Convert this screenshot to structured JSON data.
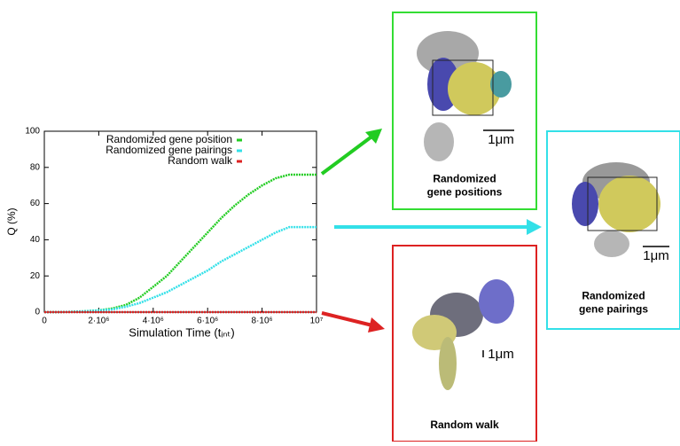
{
  "chart_data": {
    "type": "line",
    "x_label": "Simulation Time (tᵢₙₜ)",
    "y_label": "Q (%)",
    "x": [
      0,
      500000,
      1000000,
      1500000,
      2000000,
      2500000,
      3000000,
      3500000,
      4000000,
      4500000,
      5000000,
      5500000,
      6000000,
      6500000,
      7000000,
      7500000,
      8000000,
      8500000,
      9000000,
      9500000,
      10000000
    ],
    "series": [
      {
        "name": "Randomized gene position",
        "color": "#22cc22",
        "values": [
          0,
          0,
          0.2,
          0.5,
          1,
          2,
          4,
          8,
          14,
          20,
          28,
          36,
          44,
          52,
          59,
          65,
          70,
          74,
          76,
          76,
          76
        ]
      },
      {
        "name": "Randomized gene pairings",
        "color": "#33e0e8",
        "values": [
          0,
          0,
          0.2,
          0.5,
          1,
          1.5,
          3,
          5,
          8,
          11,
          15,
          19,
          23,
          28,
          32,
          36,
          40,
          44,
          47,
          47,
          47
        ]
      },
      {
        "name": "Random walk",
        "color": "#dd2222",
        "values": [
          0,
          0,
          0,
          0,
          0,
          0,
          0,
          0,
          0,
          0,
          0,
          0,
          0,
          0,
          0,
          0,
          0,
          0,
          0,
          0,
          0
        ]
      }
    ],
    "xlim": [
      0,
      10000000
    ],
    "xticks": [
      0,
      {
        "value": 2000000,
        "label": "2·10⁶"
      },
      {
        "value": 4000000,
        "label": "4·10⁶"
      },
      {
        "value": 6000000,
        "label": "6·10⁶"
      },
      {
        "value": 8000000,
        "label": "8·10⁶"
      },
      {
        "value": 10000000,
        "label": "10⁷"
      }
    ],
    "ylim": [
      0,
      100
    ],
    "yticks": [
      0,
      20,
      40,
      60,
      80,
      100
    ],
    "legend": "top-right"
  },
  "panels": [
    {
      "label": [
        "Randomized",
        "gene positions"
      ],
      "scale": "1μm",
      "color": "#33dd33"
    },
    {
      "label": [
        "Randomized",
        "gene pairings"
      ],
      "scale": "1μm",
      "color": "#33e0e8"
    },
    {
      "label": [
        "Random walk"
      ],
      "scale": "1μm",
      "color": "#dd2222"
    }
  ]
}
